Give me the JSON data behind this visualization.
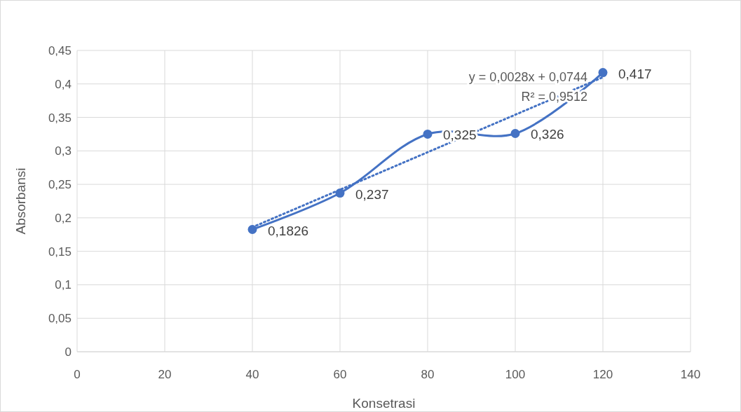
{
  "chart_data": {
    "type": "line",
    "xlabel": "Konsetrasi",
    "ylabel": "Absorbansi",
    "x": [
      40,
      60,
      80,
      100,
      120
    ],
    "series": [
      {
        "color": "#4472c4",
        "values": [
          0.1826,
          0.237,
          0.325,
          0.326,
          0.417
        ],
        "value_labels": [
          "0,1826",
          "0,237",
          "0,325",
          "0,326",
          "0,417"
        ],
        "marker": "circle",
        "line_style": "solid"
      },
      {
        "color": "#4472c4",
        "x": [
          40,
          120
        ],
        "values": [
          0.186,
          0.41
        ],
        "marker": "none",
        "line_style": "dotted"
      }
    ],
    "xlim": [
      0,
      140
    ],
    "xticks": [
      0,
      20,
      40,
      60,
      80,
      100,
      120,
      140
    ],
    "ylim": [
      0,
      0.45
    ],
    "yticks": [
      0,
      {
        "value": 0.05,
        "label": "0,05"
      },
      {
        "value": 0.1,
        "label": "0,1"
      },
      {
        "value": 0.15,
        "label": "0,15"
      },
      {
        "value": 0.2,
        "label": "0,2"
      },
      {
        "value": 0.25,
        "label": "0,25"
      },
      {
        "value": 0.3,
        "label": "0,3"
      },
      {
        "value": 0.35,
        "label": "0,35"
      },
      {
        "value": 0.4,
        "label": "0,4"
      },
      {
        "value": 0.45,
        "label": "0,45"
      }
    ],
    "annotations": [
      "y = 0,0028x + 0,0744",
      "R² = 0,9512"
    ],
    "grid": true
  }
}
